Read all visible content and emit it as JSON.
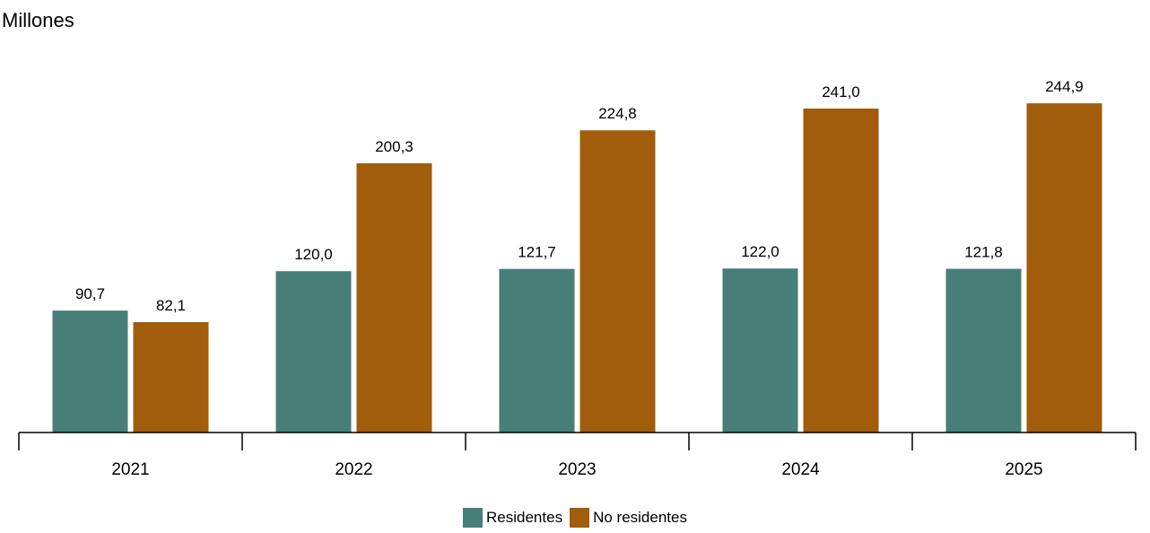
{
  "chart_data": {
    "type": "bar",
    "title": "",
    "ylabel": "Millones",
    "xlabel": "",
    "ylim": [
      0,
      270
    ],
    "categories": [
      "2021",
      "2022",
      "2023",
      "2024",
      "2025"
    ],
    "series": [
      {
        "name": "Residentes",
        "color": "#477e78",
        "values": [
          90.7,
          120.0,
          121.7,
          122.0,
          121.8
        ],
        "labels": [
          "90,7",
          "120,0",
          "121,7",
          "122,0",
          "121,8"
        ]
      },
      {
        "name": "No residentes",
        "color": "#a15c0c",
        "values": [
          82.1,
          200.3,
          224.8,
          241.0,
          244.9
        ],
        "labels": [
          "82,1",
          "200,3",
          "224,8",
          "241,0",
          "244,9"
        ]
      }
    ],
    "legend_position": "bottom-center"
  }
}
